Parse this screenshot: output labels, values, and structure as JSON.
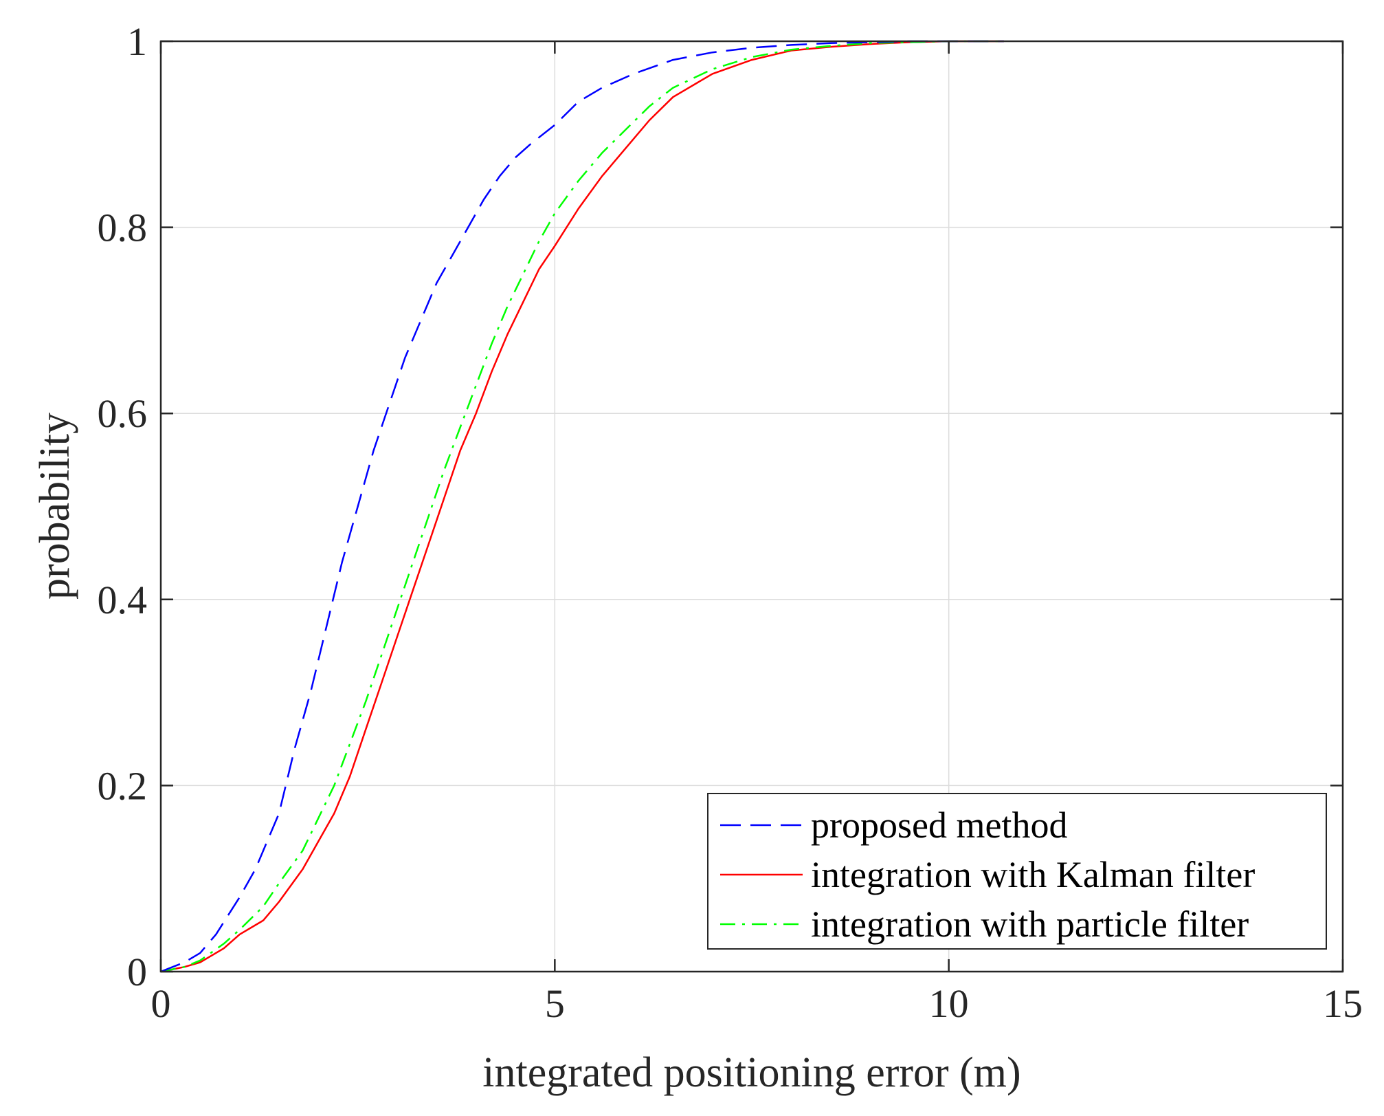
{
  "chart_data": {
    "type": "line",
    "title": "",
    "xlabel": "integrated positioning error (m)",
    "ylabel": "probability",
    "xlim": [
      0,
      15
    ],
    "ylim": [
      0,
      1
    ],
    "grid": true,
    "legend_position": "bottom-right",
    "x_ticks": [
      {
        "value": 0,
        "label": "0"
      },
      {
        "value": 5,
        "label": "5"
      },
      {
        "value": 10,
        "label": "10"
      },
      {
        "value": 15,
        "label": "15"
      }
    ],
    "y_ticks": [
      {
        "value": 0,
        "label": "0"
      },
      {
        "value": 0.2,
        "label": "0.2"
      },
      {
        "value": 0.4,
        "label": "0.4"
      },
      {
        "value": 0.6,
        "label": "0.6"
      },
      {
        "value": 0.8,
        "label": "0.8"
      },
      {
        "value": 1,
        "label": "1"
      }
    ],
    "series": [
      {
        "name": "proposed method",
        "color": "#0000ff",
        "style": "dashed",
        "x": [
          0,
          0.3,
          0.5,
          0.7,
          1.0,
          1.2,
          1.5,
          1.7,
          1.9,
          2.1,
          2.3,
          2.5,
          2.7,
          2.9,
          3.1,
          3.3,
          3.5,
          3.7,
          3.9,
          4.1,
          4.3,
          4.5,
          4.7,
          5.0,
          5.3,
          5.6,
          6.0,
          6.5,
          7.0,
          7.5,
          8.0,
          8.5,
          9.0,
          9.5,
          10.0,
          10.7
        ],
        "y": [
          0,
          0.01,
          0.02,
          0.04,
          0.08,
          0.11,
          0.17,
          0.24,
          0.3,
          0.37,
          0.44,
          0.5,
          0.56,
          0.61,
          0.66,
          0.7,
          0.74,
          0.77,
          0.8,
          0.83,
          0.855,
          0.875,
          0.89,
          0.91,
          0.935,
          0.95,
          0.965,
          0.98,
          0.988,
          0.993,
          0.996,
          0.998,
          0.999,
          1.0,
          1.0,
          1.0
        ]
      },
      {
        "name": "integration with Kalman filter",
        "color": "#ff0000",
        "style": "solid",
        "x": [
          0,
          0.3,
          0.5,
          0.8,
          1.0,
          1.3,
          1.5,
          1.8,
          2.0,
          2.2,
          2.4,
          2.6,
          2.8,
          3.0,
          3.2,
          3.4,
          3.6,
          3.8,
          4.0,
          4.2,
          4.4,
          4.6,
          4.8,
          5.0,
          5.3,
          5.6,
          5.9,
          6.2,
          6.5,
          7.0,
          7.5,
          8.0,
          8.5,
          9.0,
          9.5,
          10.0,
          10.7
        ],
        "y": [
          0,
          0.005,
          0.01,
          0.025,
          0.04,
          0.055,
          0.075,
          0.11,
          0.14,
          0.17,
          0.21,
          0.26,
          0.31,
          0.36,
          0.41,
          0.46,
          0.51,
          0.56,
          0.6,
          0.645,
          0.685,
          0.72,
          0.755,
          0.78,
          0.82,
          0.855,
          0.885,
          0.915,
          0.94,
          0.965,
          0.98,
          0.99,
          0.994,
          0.997,
          0.999,
          1.0,
          1.0
        ]
      },
      {
        "name": "integration with particle filter",
        "color": "#00ff00",
        "style": "dashdot",
        "x": [
          0,
          0.3,
          0.5,
          0.8,
          1.0,
          1.3,
          1.5,
          1.8,
          2.0,
          2.2,
          2.4,
          2.6,
          2.8,
          3.0,
          3.2,
          3.4,
          3.6,
          3.8,
          4.0,
          4.2,
          4.4,
          4.6,
          4.8,
          5.0,
          5.3,
          5.6,
          5.9,
          6.2,
          6.5,
          7.0,
          7.5,
          8.0,
          8.5,
          9.0,
          9.5,
          10.0,
          10.7
        ],
        "y": [
          0,
          0.005,
          0.012,
          0.03,
          0.045,
          0.07,
          0.095,
          0.13,
          0.165,
          0.2,
          0.245,
          0.29,
          0.34,
          0.39,
          0.44,
          0.49,
          0.54,
          0.585,
          0.63,
          0.675,
          0.715,
          0.75,
          0.785,
          0.815,
          0.85,
          0.88,
          0.905,
          0.93,
          0.95,
          0.97,
          0.983,
          0.991,
          0.995,
          0.998,
          0.999,
          1.0,
          1.0
        ]
      }
    ]
  }
}
